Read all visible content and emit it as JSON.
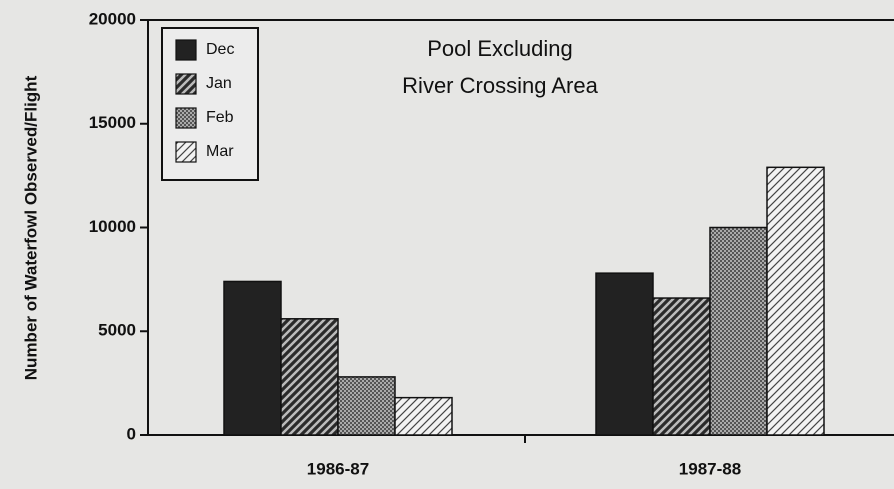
{
  "chart_data": {
    "type": "bar",
    "title": [
      "Pool Excluding",
      "River Crossing Area"
    ],
    "y_label": "Number of Waterfowl Observed/Flight",
    "categories": [
      "1986-87",
      "1987-88"
    ],
    "series": [
      {
        "name": "Dec",
        "color": "#222222",
        "pattern": "solid",
        "values": [
          7400,
          7800
        ]
      },
      {
        "name": "Jan",
        "color": "#2a2a2a",
        "pattern": "dense-hatch",
        "values": [
          5600,
          6600
        ]
      },
      {
        "name": "Feb",
        "color": "#555555",
        "pattern": "crosshatch",
        "values": [
          2800,
          10000
        ]
      },
      {
        "name": "Mar",
        "color": "#444444",
        "pattern": "light-hatch",
        "values": [
          1800,
          12900
        ]
      }
    ],
    "ylim": [
      0,
      20000
    ],
    "yticks": [
      0,
      5000,
      10000,
      15000,
      20000
    ],
    "legend": "upper left"
  }
}
